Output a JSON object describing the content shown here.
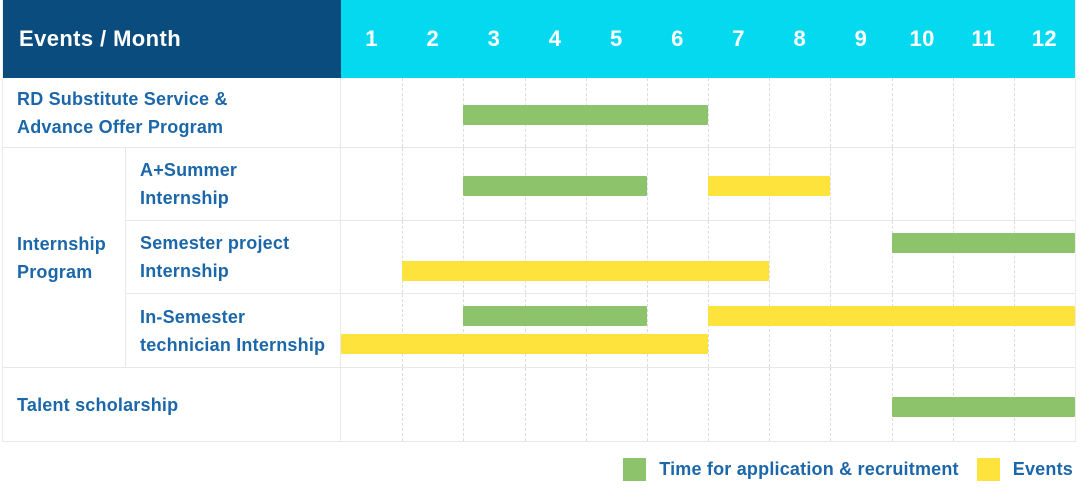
{
  "chart_data": {
    "type": "bar",
    "variant": "gantt",
    "corner_label": "Events / Month",
    "months": [
      "1",
      "2",
      "3",
      "4",
      "5",
      "6",
      "7",
      "8",
      "9",
      "10",
      "11",
      "12"
    ],
    "x_range": [
      1,
      12
    ],
    "grid": true,
    "legend_position": "bottom-right",
    "series_legend": [
      {
        "key": "recruitment",
        "label": "Time for application & recruitment",
        "color": "#8cc36b"
      },
      {
        "key": "events",
        "label": "Events",
        "color": "#ffe33d"
      }
    ],
    "group_label_lines": [
      "Internship",
      "Program"
    ],
    "rows": [
      {
        "id": "rd-substitute-service",
        "label_lines": [
          "RD Substitute Service &",
          "Advance Offer Program"
        ],
        "group": null,
        "bars": [
          {
            "series": "recruitment",
            "start_month": 3,
            "end_month": 6,
            "lane": "center"
          }
        ]
      },
      {
        "id": "a-plus-summer-internship",
        "label_lines": [
          "A+Summer",
          "Internship"
        ],
        "group": "Internship Program",
        "bars": [
          {
            "series": "recruitment",
            "start_month": 3,
            "end_month": 5,
            "lane": "center"
          },
          {
            "series": "events",
            "start_month": 7,
            "end_month": 8,
            "lane": "center"
          }
        ]
      },
      {
        "id": "semester-project-internship",
        "label_lines": [
          "Semester project",
          "Internship"
        ],
        "group": "Internship Program",
        "bars": [
          {
            "series": "recruitment",
            "start_month": 10,
            "end_month": 12,
            "lane": "top"
          },
          {
            "series": "events",
            "start_month": 2,
            "end_month": 7,
            "lane": "bottom"
          }
        ]
      },
      {
        "id": "in-semester-technician-internship",
        "label_lines": [
          "In-Semester",
          "technician Internship"
        ],
        "group": "Internship Program",
        "bars": [
          {
            "series": "recruitment",
            "start_month": 3,
            "end_month": 5,
            "lane": "top"
          },
          {
            "series": "events",
            "start_month": 7,
            "end_month": 12,
            "lane": "top"
          },
          {
            "series": "events",
            "start_month": 1,
            "end_month": 6,
            "lane": "bottom"
          }
        ]
      },
      {
        "id": "talent-scholarship",
        "label_lines": [
          "Talent scholarship"
        ],
        "group": null,
        "bars": [
          {
            "series": "recruitment",
            "start_month": 10,
            "end_month": 12,
            "lane": "center"
          }
        ]
      }
    ]
  },
  "colors": {
    "header_bg": "#0a4c7e",
    "month_header_bg": "#05d9f0",
    "label_text": "#1b67aa",
    "recruitment_green": "#8cc36b",
    "events_yellow": "#ffe33d",
    "grid_line": "#e8e8e8"
  }
}
